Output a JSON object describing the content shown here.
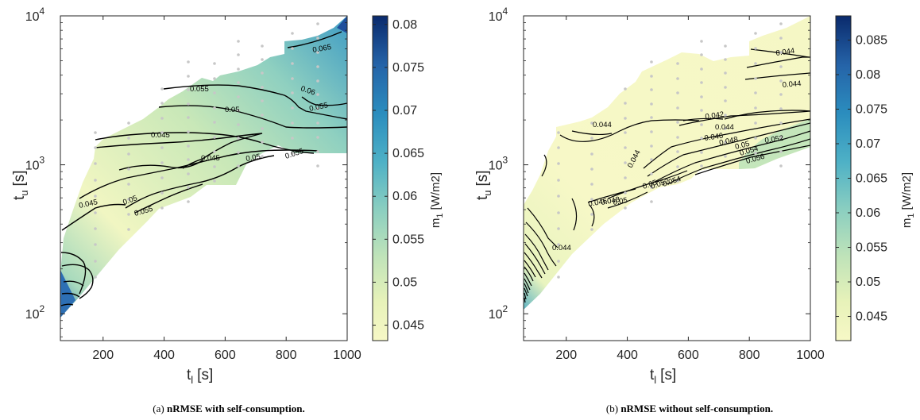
{
  "chart_data": [
    {
      "type": "contour",
      "caption_prefix": "(a)",
      "caption_bold": "nRMSE with self-consumption.",
      "xlabel_main": "t",
      "xlabel_sub": "l",
      "xlabel_unit": "[s]",
      "ylabel_main": "t",
      "ylabel_sub": "u",
      "ylabel_unit": "[s]",
      "x_ticks": [
        "200",
        "400",
        "600",
        "800",
        "1000"
      ],
      "y_ticks": [
        "10",
        "10",
        "10"
      ],
      "y_tick_exps": [
        "2",
        "3",
        "4"
      ],
      "xlim": [
        60,
        1000
      ],
      "ylim": [
        66,
        10000
      ],
      "yscale": "log",
      "colorbar": {
        "label_main": "m",
        "label_sub": "1",
        "label_unit": "[W/m2]",
        "range": [
          0.0432,
          0.081
        ],
        "ticks": [
          "0.045",
          "0.05",
          "0.055",
          "0.06",
          "0.065",
          "0.07",
          "0.075",
          "0.08"
        ]
      },
      "contour_labels": [
        "0.065",
        "0.055",
        "0.06",
        "0.05",
        "0.055",
        "0.045",
        "0.045",
        "0.05",
        "0.055",
        "0.045",
        "0.05",
        "0.055"
      ]
    },
    {
      "type": "contour",
      "caption_prefix": "(b)",
      "caption_bold": "nRMSE without self-consumption.",
      "xlabel_main": "t",
      "xlabel_sub": "l",
      "xlabel_unit": "[s]",
      "ylabel_main": "t",
      "ylabel_sub": "u",
      "ylabel_unit": "[s]",
      "x_ticks": [
        "200",
        "400",
        "600",
        "800",
        "1000"
      ],
      "y_ticks": [
        "10",
        "10",
        "10"
      ],
      "y_tick_exps": [
        "2",
        "3",
        "4"
      ],
      "xlim": [
        60,
        1000
      ],
      "ylim": [
        66,
        10000
      ],
      "yscale": "log",
      "colorbar": {
        "label_main": "m",
        "label_sub": "1",
        "label_unit": "[W/m2]",
        "range": [
          0.0415,
          0.0885
        ],
        "ticks": [
          "0.045",
          "0.05",
          "0.055",
          "0.06",
          "0.065",
          "0.07",
          "0.075",
          "0.08",
          "0.085"
        ]
      },
      "contour_labels": [
        "0.044",
        "0.044",
        "0.044",
        "0.042",
        "0.044",
        "0.046",
        "0.048",
        "0.05",
        "0.052",
        "0.054",
        "0.056",
        "0.044",
        "0.05",
        "0.052",
        "0.054",
        "0.046",
        "0.048",
        "0.05",
        "0.044"
      ]
    }
  ]
}
